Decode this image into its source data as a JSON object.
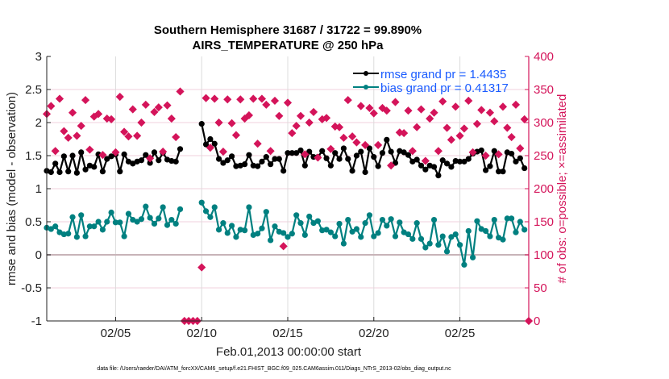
{
  "chart_data": {
    "type": "line",
    "title_lines": [
      "Southern Hemisphere 31687 / 31722 = 99.890%",
      "AIRS_TEMPERATURE @ 250 hPa"
    ],
    "xlabel": "Feb.01,2013 00:00:00 start",
    "ylabel_left": "rmse and bias (model - observation)",
    "ylabel_right": "# of obs: o=possible; ×=assimilated",
    "footer": "data file: /Users/raeder/DAI/ATM_forcXX/CAM6_setup/f.e21.FHIST_BGC.f09_025.CAM6assim.011/Diags_NTrS_2013-02/obs_diag_output.nc",
    "xlim": [
      "02/01 00:00",
      "03/01 00:00"
    ],
    "ylim_left": [
      -1,
      3
    ],
    "ylim_right": [
      0,
      400
    ],
    "xticks": [
      "02/05",
      "02/10",
      "02/15",
      "02/20",
      "02/25"
    ],
    "xtick_days": [
      "02/05 00:00",
      "02/10 00:00",
      "02/15 00:00",
      "02/20 00:00",
      "02/25 00:00"
    ],
    "yticks_left": [
      "3",
      "2.5",
      "2",
      "1.5",
      "1",
      "0.5",
      "0",
      "-0.5",
      "-1"
    ],
    "yticks_right": [
      "400",
      "350",
      "300",
      "250",
      "200",
      "150",
      "100",
      "50",
      "0"
    ],
    "grid": true,
    "legend_position": "top-right",
    "colors": {
      "rmse": "#000000",
      "bias": "#008080",
      "obs": "#d4145a",
      "legend_text": "#1a5cff",
      "right_axis": "#d4145a",
      "zero_line": "#c8b4b8"
    },
    "x": [
      "02/01 00:00",
      "02/01 06:00",
      "02/01 12:00",
      "02/01 18:00",
      "02/02 00:00",
      "02/02 06:00",
      "02/02 12:00",
      "02/02 18:00",
      "02/03 00:00",
      "02/03 06:00",
      "02/03 12:00",
      "02/03 18:00",
      "02/04 00:00",
      "02/04 06:00",
      "02/04 12:00",
      "02/04 18:00",
      "02/05 00:00",
      "02/05 06:00",
      "02/05 12:00",
      "02/05 18:00",
      "02/06 00:00",
      "02/06 06:00",
      "02/06 12:00",
      "02/06 18:00",
      "02/07 00:00",
      "02/07 06:00",
      "02/07 12:00",
      "02/07 18:00",
      "02/08 00:00",
      "02/08 06:00",
      "02/08 12:00",
      "02/08 18:00",
      "02/09 00:00",
      "02/09 06:00",
      "02/09 12:00",
      "02/09 18:00",
      "02/10 00:00",
      "02/10 06:00",
      "02/10 12:00",
      "02/10 18:00",
      "02/11 00:00",
      "02/11 06:00",
      "02/11 12:00",
      "02/11 18:00",
      "02/12 00:00",
      "02/12 06:00",
      "02/12 12:00",
      "02/12 18:00",
      "02/13 00:00",
      "02/13 06:00",
      "02/13 12:00",
      "02/13 18:00",
      "02/14 00:00",
      "02/14 06:00",
      "02/14 12:00",
      "02/14 18:00",
      "02/15 00:00",
      "02/15 06:00",
      "02/15 12:00",
      "02/15 18:00",
      "02/16 00:00",
      "02/16 06:00",
      "02/16 12:00",
      "02/16 18:00",
      "02/17 00:00",
      "02/17 06:00",
      "02/17 12:00",
      "02/17 18:00",
      "02/18 00:00",
      "02/18 06:00",
      "02/18 12:00",
      "02/18 18:00",
      "02/19 00:00",
      "02/19 06:00",
      "02/19 12:00",
      "02/19 18:00",
      "02/20 00:00",
      "02/20 06:00",
      "02/20 12:00",
      "02/20 18:00",
      "02/21 00:00",
      "02/21 06:00",
      "02/21 12:00",
      "02/21 18:00",
      "02/22 00:00",
      "02/22 06:00",
      "02/22 12:00",
      "02/22 18:00",
      "02/23 00:00",
      "02/23 06:00",
      "02/23 12:00",
      "02/23 18:00",
      "02/24 00:00",
      "02/24 06:00",
      "02/24 12:00",
      "02/24 18:00",
      "02/25 00:00",
      "02/25 06:00",
      "02/25 12:00",
      "02/25 18:00",
      "02/26 00:00",
      "02/26 06:00",
      "02/26 12:00",
      "02/26 18:00",
      "02/27 00:00",
      "02/27 06:00",
      "02/27 12:00",
      "02/27 18:00",
      "02/28 00:00",
      "02/28 06:00",
      "02/28 12:00",
      "02/28 18:00",
      "03/01 00:00"
    ],
    "series": [
      {
        "name": "rmse grand pr = 1.4435",
        "axis": "left",
        "values": [
          1.27,
          1.25,
          1.38,
          1.25,
          1.49,
          1.26,
          1.5,
          1.24,
          1.55,
          1.29,
          1.35,
          1.33,
          1.52,
          1.26,
          1.45,
          1.49,
          1.52,
          1.26,
          1.52,
          1.41,
          1.38,
          1.41,
          1.43,
          1.51,
          1.39,
          1.55,
          1.43,
          1.54,
          1.44,
          1.42,
          1.41,
          1.6,
          null,
          null,
          null,
          null,
          1.98,
          1.67,
          1.75,
          1.68,
          1.45,
          1.39,
          1.43,
          1.49,
          1.34,
          1.35,
          1.37,
          1.51,
          1.35,
          1.34,
          1.41,
          1.48,
          1.37,
          1.45,
          1.45,
          1.27,
          1.54,
          1.54,
          1.54,
          1.58,
          1.35,
          1.56,
          1.48,
          1.48,
          1.57,
          1.46,
          1.35,
          1.54,
          1.45,
          1.61,
          1.45,
          1.27,
          1.5,
          1.56,
          1.25,
          1.61,
          1.48,
          1.34,
          1.54,
          1.74,
          1.56,
          1.39,
          1.57,
          1.55,
          1.51,
          1.41,
          1.44,
          1.35,
          1.29,
          1.35,
          1.33,
          1.2,
          1.43,
          1.38,
          1.33,
          1.42,
          1.41,
          1.41,
          1.45,
          1.53,
          1.56,
          1.58,
          1.28,
          1.34,
          1.57,
          1.26,
          1.26,
          1.55,
          1.53,
          1.41,
          1.46,
          1.31,
          null
        ]
      },
      {
        "name": "bias grand pr = 0.41317",
        "axis": "left",
        "values": [
          0.41,
          0.39,
          0.43,
          0.34,
          0.31,
          0.32,
          0.57,
          0.27,
          0.6,
          0.28,
          0.43,
          0.43,
          0.5,
          0.38,
          0.5,
          0.64,
          0.49,
          0.49,
          0.28,
          0.62,
          0.53,
          0.5,
          0.54,
          0.73,
          0.56,
          0.47,
          0.55,
          0.72,
          0.45,
          0.53,
          0.47,
          0.69,
          null,
          null,
          null,
          null,
          0.79,
          0.66,
          0.57,
          0.72,
          0.38,
          0.48,
          0.33,
          0.44,
          0.27,
          0.38,
          0.37,
          0.72,
          0.3,
          0.32,
          0.4,
          0.65,
          0.22,
          0.43,
          0.35,
          0.33,
          0.27,
          0.32,
          0.6,
          0.48,
          0.3,
          0.58,
          0.48,
          0.51,
          0.37,
          0.38,
          0.34,
          0.28,
          0.47,
          0.17,
          0.53,
          0.35,
          0.39,
          0.27,
          0.48,
          0.6,
          0.28,
          0.33,
          0.53,
          0.44,
          0.54,
          0.28,
          0.49,
          0.34,
          0.31,
          0.24,
          0.48,
          0.24,
          0.11,
          0.17,
          0.53,
          0.15,
          0.28,
          0.05,
          0.27,
          0.31,
          0.15,
          -0.15,
          0.36,
          -0.04,
          0.51,
          0.39,
          0.36,
          0.28,
          0.53,
          0.26,
          0.23,
          0.55,
          0.55,
          0.34,
          0.5,
          0.38,
          null
        ]
      },
      {
        "axis": "right",
        "marker": "possible-and-assimilated",
        "values": [
          313,
          325,
          257,
          336,
          287,
          277,
          315,
          280,
          295,
          334,
          259,
          309,
          313,
          251,
          306,
          305,
          255,
          339,
          286,
          279,
          320,
          280,
          300,
          327,
          246,
          316,
          323,
          256,
          326,
          306,
          278,
          347,
          0,
          0,
          0,
          0,
          81,
          337,
          262,
          336,
          300,
          256,
          335,
          299,
          281,
          335,
          306,
          311,
          336,
          268,
          336,
          327,
          257,
          333,
          310,
          113,
          330,
          284,
          295,
          310,
          252,
          300,
          316,
          247,
          305,
          307,
          260,
          294,
          293,
          277,
          334,
          279,
          270,
          325,
          266,
          322,
          314,
          266,
          322,
          318,
          235,
          331,
          285,
          284,
          318,
          257,
          293,
          320,
          242,
          306,
          315,
          257,
          332,
          292,
          274,
          324,
          280,
          291,
          333,
          255,
          298,
          319,
          250,
          315,
          302,
          252,
          324,
          292,
          278,
          327,
          261,
          305,
          0
        ]
      }
    ]
  }
}
